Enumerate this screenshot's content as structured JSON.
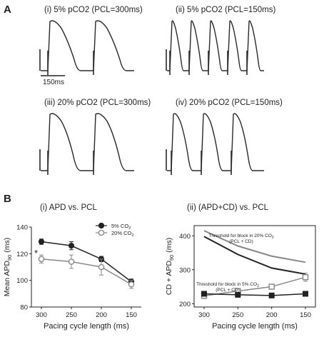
{
  "panel_a": {
    "letter": "A",
    "traces": [
      {
        "label": "(i) 5% pCO2 (PCL=300ms)",
        "beats": 2
      },
      {
        "label": "(ii) 5% pCO2 (PCL=150ms)",
        "beats": 5
      },
      {
        "label": "(iii) 20% pCO2 (PCL=300ms)",
        "beats": 2
      },
      {
        "label": "(iv) 20% pCO2 (PCL=150ms)",
        "beats": 3
      }
    ],
    "scale_bar": "150ms"
  },
  "panel_b": {
    "letter": "B"
  },
  "chart_data": [
    {
      "type": "line",
      "title": "(i) APD vs. PCL",
      "xlabel": "Pacing cycle length (ms)",
      "ylabel": "Mean APD90 (ms)",
      "ylabel_main": "Mean APD",
      "ylabel_sub": "90",
      "ylabel_tail": " (ms)",
      "categories": [
        "300",
        "250",
        "200",
        "150"
      ],
      "ylim": [
        80,
        140
      ],
      "yticks": [
        "80",
        "100",
        "120",
        "140"
      ],
      "legend_position": "top-right",
      "series": [
        {
          "name": "5% CO2",
          "name_main": "5%  CO",
          "name_sub": "2",
          "marker": "filled-circle",
          "color": "#222222",
          "values": [
            129,
            126,
            116,
            99
          ],
          "errors": [
            2,
            3,
            2,
            2
          ]
        },
        {
          "name": "20% CO2",
          "name_main": "20% CO",
          "name_sub": "2",
          "marker": "open-circle",
          "color": "#888888",
          "values": [
            116,
            114,
            110,
            97
          ],
          "errors": [
            3,
            5,
            6,
            3
          ]
        }
      ],
      "annotations": [
        {
          "text": "*",
          "category": "300"
        }
      ]
    },
    {
      "type": "line",
      "title": "(ii) (APD+CD) vs. PCL",
      "xlabel": "Pacing cycle length (ms)",
      "ylabel": "CD + APD90 (ms)",
      "ylabel_main": "CD + APD",
      "ylabel_sub": "90",
      "ylabel_tail": " (ms)",
      "categories": [
        "300",
        "250",
        "200",
        "150"
      ],
      "ylim": [
        190,
        430
      ],
      "yticks": [
        "200",
        "300",
        "400"
      ],
      "series": [
        {
          "name": "Threshold for block in 20% CO2 (PCL + CD)",
          "marker": "none",
          "color": "#888888",
          "width": 2,
          "values": [
            415,
            370,
            340,
            322
          ]
        },
        {
          "name": "Threshold for block in 5% CO2 (PCL + CD)",
          "marker": "none",
          "color": "#222222",
          "width": 2,
          "values": [
            398,
            345,
            305,
            287
          ]
        },
        {
          "name": "20% CO2",
          "marker": "open-square",
          "color": "#888888",
          "width": 1.5,
          "values": [
            223,
            237,
            250,
            278
          ],
          "errors": [
            8,
            7,
            6,
            12
          ]
        },
        {
          "name": "5% CO2",
          "marker": "filled-square",
          "color": "#222222",
          "width": 1.5,
          "values": [
            229,
            226,
            224,
            229
          ],
          "errors": [
            3,
            3,
            2,
            4
          ]
        }
      ],
      "annotations": [
        {
          "lines": [
            "Threshold for block in 20% CO",
            "(PCL + CD)"
          ],
          "sub": "2",
          "color": "#777777"
        },
        {
          "lines": [
            "Threshold for block in 5% CO",
            "(PCL + CD)"
          ],
          "sub": "2",
          "color": "#111111"
        }
      ]
    }
  ]
}
